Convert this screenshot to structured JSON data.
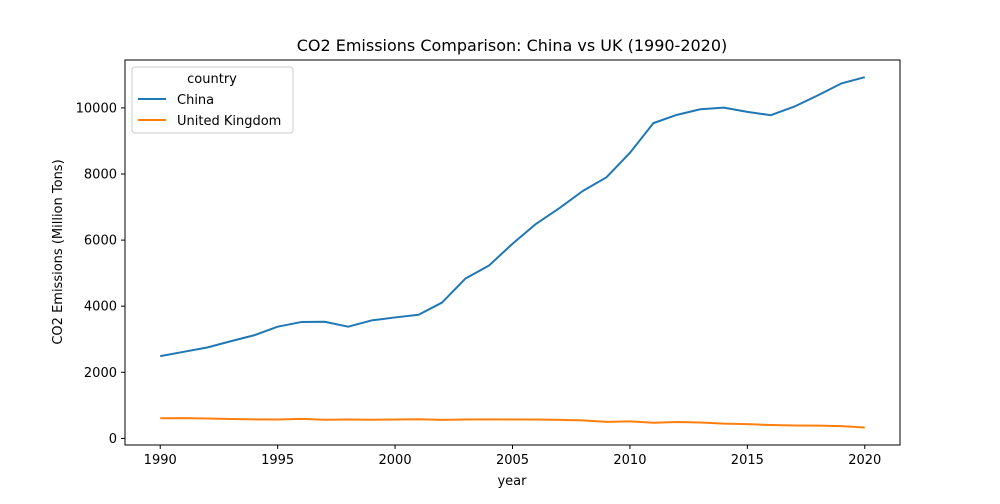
{
  "chart_data": {
    "type": "line",
    "title": "CO2 Emissions Comparison: China vs UK (1990-2020)",
    "xlabel": "year",
    "ylabel": "CO2 Emissions (Million Tons)",
    "xlim": [
      1988.5,
      2021.5
    ],
    "ylim": [
      -200,
      11450
    ],
    "x_ticks": [
      1990,
      1995,
      2000,
      2005,
      2010,
      2015,
      2020
    ],
    "y_ticks": [
      0,
      2000,
      4000,
      6000,
      8000,
      10000
    ],
    "grid": false,
    "legend": {
      "title": "country",
      "placement": "top-left"
    },
    "x": [
      1990,
      1991,
      1992,
      1993,
      1994,
      1995,
      1996,
      1997,
      1998,
      1999,
      2000,
      2001,
      2002,
      2003,
      2004,
      2005,
      2006,
      2007,
      2008,
      2009,
      2010,
      2011,
      2012,
      2013,
      2014,
      2015,
      2016,
      2017,
      2018,
      2019,
      2020
    ],
    "series": [
      {
        "name": "China",
        "color": "#1f77b4",
        "values": [
          2490,
          2620,
          2750,
          2940,
          3120,
          3380,
          3520,
          3530,
          3380,
          3570,
          3660,
          3740,
          4110,
          4840,
          5230,
          5890,
          6490,
          6970,
          7490,
          7900,
          8640,
          9540,
          9790,
          9960,
          10010,
          9880,
          9780,
          10040,
          10380,
          10740,
          10930
        ]
      },
      {
        "name": "United Kingdom",
        "color": "#ff7f0e",
        "values": [
          610,
          615,
          600,
          585,
          575,
          570,
          590,
          565,
          570,
          565,
          570,
          580,
          560,
          570,
          575,
          570,
          570,
          560,
          545,
          500,
          515,
          475,
          495,
          480,
          445,
          430,
          405,
          390,
          385,
          370,
          330
        ]
      }
    ]
  }
}
